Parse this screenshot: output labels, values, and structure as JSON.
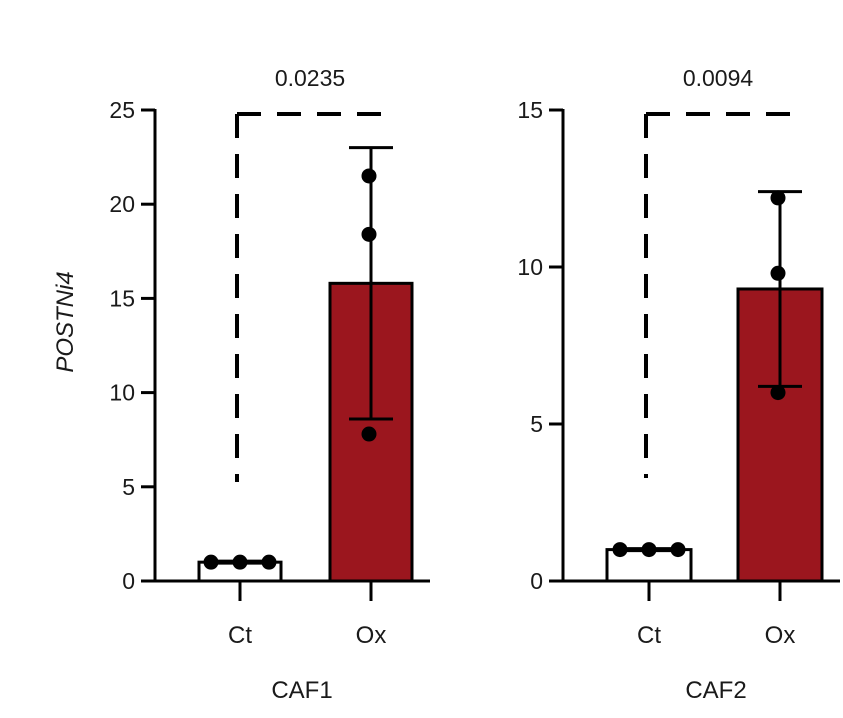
{
  "ylabel": "POSTNi4",
  "colors": {
    "ct_fill": "#ffffff",
    "ox_fill": "#9b161e",
    "stroke": "#000000"
  },
  "chart_data": [
    {
      "type": "bar",
      "title": "",
      "xlabel": "CAF1",
      "ylabel": "POSTNi4",
      "categories": [
        "Ct",
        "Ox"
      ],
      "values": [
        1.0,
        15.8
      ],
      "error": [
        0.0,
        7.2
      ],
      "points": [
        [
          1.0,
          1.0,
          1.0
        ],
        [
          21.5,
          18.4,
          7.8
        ]
      ],
      "ylim": [
        0,
        25
      ],
      "yticks": [
        0,
        5,
        10,
        15,
        20,
        25
      ],
      "p_value": "0.0235",
      "grid": false
    },
    {
      "type": "bar",
      "title": "",
      "xlabel": "CAF2",
      "ylabel": "",
      "categories": [
        "Ct",
        "Ox"
      ],
      "values": [
        1.0,
        9.3
      ],
      "error": [
        0.0,
        3.1
      ],
      "points": [
        [
          1.0,
          1.0,
          1.0
        ],
        [
          12.2,
          9.8,
          6.0
        ]
      ],
      "ylim": [
        0,
        15
      ],
      "yticks": [
        0,
        5,
        10,
        15
      ],
      "p_value": "0.0094",
      "grid": false
    }
  ]
}
